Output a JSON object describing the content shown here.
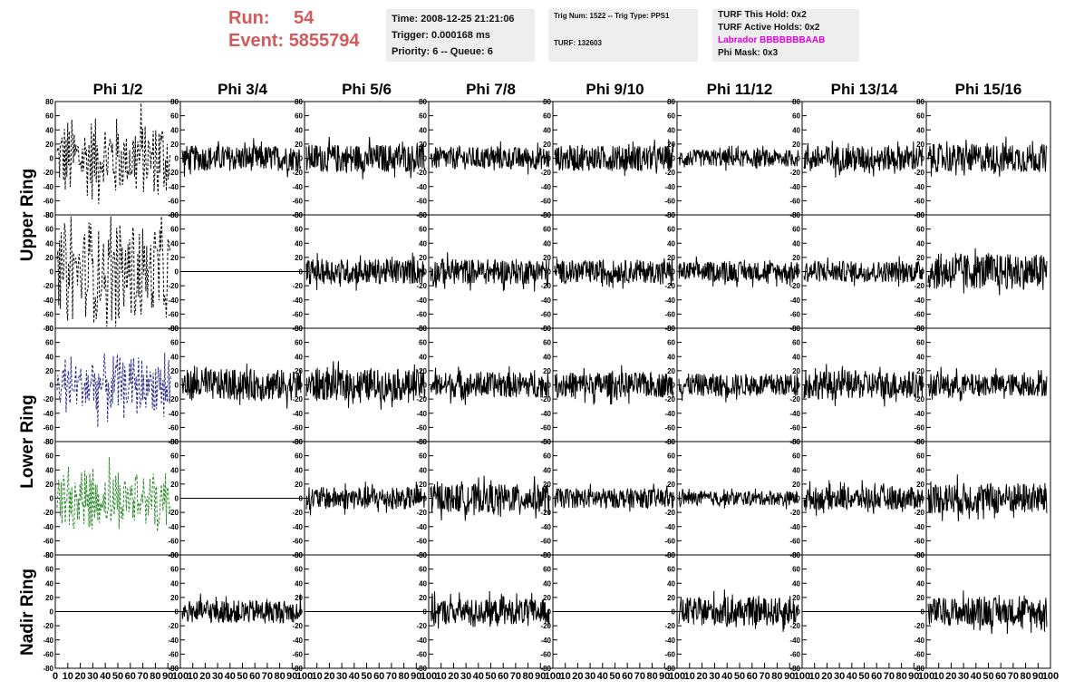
{
  "header": {
    "run_label": "Run:",
    "run_value": "54",
    "event_label": "Event:",
    "event_value": "5855794",
    "time": "Time: 2008-12-25 21:21:06",
    "trigger": "Trigger: 0.000168 ms",
    "priority": "Priority: 6 -- Queue: 6",
    "trig_num": "Trig Num: 1522 -- Trig Type: PPS1",
    "turf": "TURF: 132603",
    "turf_this_hold": "TURF This Hold: 0x2",
    "turf_active_holds": "TURF Active Holds: 0x2",
    "labrador": "Labrador BBBBBBBAAB",
    "phi_mask": "Phi Mask: 0x3"
  },
  "colors": {
    "title": "#d25a5a",
    "labrador": "#e000e0",
    "blue_trace": "#2a2a8c",
    "green_trace": "#2a8a2a",
    "trace": "#000000"
  },
  "chart_data": {
    "type": "line",
    "columns": [
      "Phi 1/2",
      "Phi 3/4",
      "Phi 5/6",
      "Phi 7/8",
      "Phi 9/10",
      "Phi 11/12",
      "Phi 13/14",
      "Phi 15/16"
    ],
    "rings": [
      "Upper Ring",
      "Lower Ring",
      "Nadir Ring"
    ],
    "xlim": [
      0,
      100
    ],
    "ylim": [
      -80,
      80
    ],
    "xticks": [
      "0",
      "10",
      "20",
      "30",
      "40",
      "50",
      "60",
      "70",
      "80",
      "90",
      "100"
    ],
    "yticks": [
      "80",
      "60",
      "40",
      "20",
      "0",
      "-20",
      "-40",
      "-60",
      "-80"
    ],
    "panels": [
      [
        {
          "style": "dashed",
          "color": "#000000",
          "amp": 60
        },
        {
          "style": "solid",
          "color": "#000000",
          "amp": 18
        },
        {
          "style": "solid",
          "color": "#000000",
          "amp": 20
        },
        {
          "style": "solid",
          "color": "#000000",
          "amp": 16
        },
        {
          "style": "solid",
          "color": "#000000",
          "amp": 18
        },
        {
          "style": "solid",
          "color": "#000000",
          "amp": 12
        },
        {
          "style": "solid",
          "color": "#000000",
          "amp": 18
        },
        {
          "style": "solid",
          "color": "#000000",
          "amp": 20
        }
      ],
      [
        {
          "style": "dashed",
          "color": "#000000",
          "amp": 75
        },
        {
          "style": "flat",
          "color": "#000000",
          "amp": 0
        },
        {
          "style": "solid",
          "color": "#000000",
          "amp": 18
        },
        {
          "style": "solid",
          "color": "#000000",
          "amp": 18
        },
        {
          "style": "solid",
          "color": "#000000",
          "amp": 16
        },
        {
          "style": "solid",
          "color": "#000000",
          "amp": 14
        },
        {
          "style": "solid",
          "color": "#000000",
          "amp": 15
        },
        {
          "style": "solid",
          "color": "#000000",
          "amp": 25
        }
      ],
      [
        {
          "style": "dashed",
          "color": "#2a2a8c",
          "amp": 45
        },
        {
          "style": "solid",
          "color": "#000000",
          "amp": 22
        },
        {
          "style": "solid",
          "color": "#000000",
          "amp": 22
        },
        {
          "style": "solid",
          "color": "#000000",
          "amp": 18
        },
        {
          "style": "solid",
          "color": "#000000",
          "amp": 18
        },
        {
          "style": "solid",
          "color": "#000000",
          "amp": 16
        },
        {
          "style": "solid",
          "color": "#000000",
          "amp": 20
        },
        {
          "style": "solid",
          "color": "#000000",
          "amp": 16
        }
      ],
      [
        {
          "style": "dashed",
          "color": "#2a8a2a",
          "amp": 48
        },
        {
          "style": "flat",
          "color": "#000000",
          "amp": 0
        },
        {
          "style": "solid",
          "color": "#000000",
          "amp": 16
        },
        {
          "style": "solid",
          "color": "#000000",
          "amp": 20
        },
        {
          "style": "solid",
          "color": "#000000",
          "amp": 14
        },
        {
          "style": "solid",
          "color": "#000000",
          "amp": 10
        },
        {
          "style": "solid",
          "color": "#000000",
          "amp": 16
        },
        {
          "style": "solid",
          "color": "#000000",
          "amp": 22
        }
      ],
      [
        {
          "style": "flat",
          "color": "#000000",
          "amp": 0
        },
        {
          "style": "solid",
          "color": "#000000",
          "amp": 16
        },
        {
          "style": "flat",
          "color": "#000000",
          "amp": 0
        },
        {
          "style": "solid",
          "color": "#000000",
          "amp": 18
        },
        {
          "style": "flat",
          "color": "#000000",
          "amp": 0
        },
        {
          "style": "solid",
          "color": "#000000",
          "amp": 20
        },
        {
          "style": "flat",
          "color": "#000000",
          "amp": 0
        },
        {
          "style": "solid",
          "color": "#000000",
          "amp": 20
        }
      ]
    ]
  }
}
